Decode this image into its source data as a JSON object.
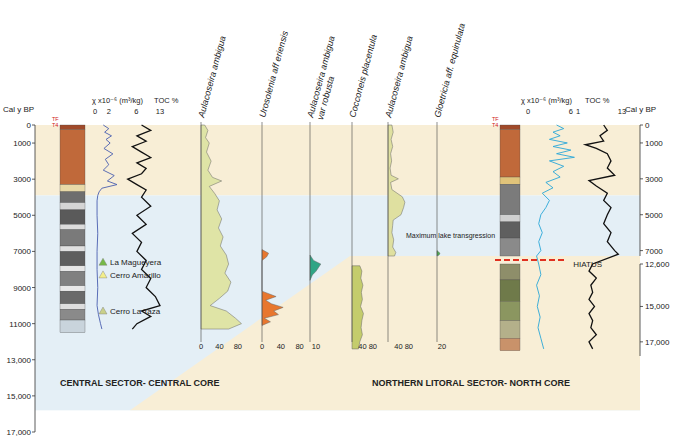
{
  "chart_data": {
    "type": "stratigraphic",
    "y_label": "Cal y BP",
    "ylim": [
      0,
      17000
    ],
    "yticks": [
      0,
      1000,
      3000,
      5000,
      7000,
      9000,
      11000,
      {
        "value": 13000,
        "label": "13,000"
      },
      {
        "value": 15000,
        "label": "15,000"
      },
      {
        "value": 17000,
        "label": "17,000"
      }
    ],
    "y2_label": "Cal y BP",
    "y2_segments": [
      {
        "ylim": [
          0,
          7300
        ],
        "yticks": [
          0,
          1000,
          3000,
          5000,
          7000
        ]
      },
      {
        "ylim": [
          12600,
          17800
        ],
        "yticks": [
          {
            "value": 12600,
            "label": "12,600"
          },
          {
            "value": 15000,
            "label": "15,000"
          },
          {
            "value": 17000,
            "label": "17,000"
          }
        ]
      }
    ],
    "hiatus": "HIATUS",
    "zones": [
      {
        "from": 0,
        "to": 3900,
        "color": "#f8eed6"
      },
      {
        "from": 3900,
        "to": 15800,
        "color": "#e4eff6"
      }
    ],
    "sectors": [
      {
        "core": "central",
        "label": "CENTRAL SECTOR- CENTRAL CORE"
      },
      {
        "core": "north",
        "label": "NORTHERN LITORAL SECTOR- NORTH CORE"
      }
    ],
    "tephra": [
      {
        "name": "La Magueyera",
        "age": 7600,
        "color": "#76b947"
      },
      {
        "name": "Cerro Amarillo",
        "age": 8300,
        "color": "#f3ee8a"
      },
      {
        "name": "Cerro La Taza",
        "age": 10300,
        "color": "#c9d08a"
      }
    ],
    "annotations": [
      {
        "core": "north",
        "age": 6300,
        "text": "Maximum lake transgression"
      }
    ],
    "panels": [
      {
        "core": "central",
        "type": "lithology",
        "top_labels": [
          "TF",
          "T4"
        ],
        "units": [
          {
            "top": 0,
            "bottom": 250,
            "color": "#a04a2a"
          },
          {
            "top": 250,
            "bottom": 3300,
            "color": "#c0693a"
          },
          {
            "top": 3300,
            "bottom": 3700,
            "color": "#e8d9a8"
          },
          {
            "top": 3700,
            "bottom": 4300,
            "color": "#6e6e6e"
          },
          {
            "top": 4300,
            "bottom": 4700,
            "color": "#d5d5d5"
          },
          {
            "top": 4700,
            "bottom": 5500,
            "color": "#5a5a5a"
          },
          {
            "top": 5500,
            "bottom": 5800,
            "color": "#dcdcdc"
          },
          {
            "top": 5800,
            "bottom": 6700,
            "color": "#7a7a7a"
          },
          {
            "top": 6700,
            "bottom": 7000,
            "color": "#e0e0e0"
          },
          {
            "top": 7000,
            "bottom": 7800,
            "color": "#5e5e5e"
          },
          {
            "top": 7800,
            "bottom": 8100,
            "color": "#e6e6e6"
          },
          {
            "top": 8100,
            "bottom": 8900,
            "color": "#808080"
          },
          {
            "top": 8900,
            "bottom": 9200,
            "color": "#e8e8e8"
          },
          {
            "top": 9200,
            "bottom": 9900,
            "color": "#6a6a6a"
          },
          {
            "top": 9900,
            "bottom": 10200,
            "color": "#dedede"
          },
          {
            "top": 10200,
            "bottom": 10800,
            "color": "#8a8a8a"
          },
          {
            "top": 10800,
            "bottom": 11500,
            "color": "#c9d4dc"
          }
        ]
      },
      {
        "core": "central",
        "type": "line",
        "label": "χ x10⁻⁶ (m³/kg)",
        "color": "#4a5fb0",
        "xlim": [
          0,
          8
        ],
        "xticks": [
          0,
          2,
          6
        ],
        "y": [
          0,
          200,
          400,
          600,
          800,
          1000,
          1300,
          1600,
          1900,
          2200,
          2500,
          2800,
          3100,
          3300,
          3500,
          3700,
          3900,
          4200,
          5000,
          6000,
          7000,
          8000,
          9000,
          10000,
          10500,
          11000,
          11300
        ],
        "values": [
          1.2,
          2.0,
          1.4,
          2.4,
          1.6,
          2.2,
          1.3,
          2.6,
          1.5,
          2.0,
          1.2,
          2.8,
          1.8,
          3.2,
          1.0,
          0.6,
          0.4,
          0.3,
          0.3,
          0.4,
          0.3,
          0.3,
          0.4,
          0.3,
          0.5,
          0.8,
          1.0
        ]
      },
      {
        "core": "central",
        "type": "line",
        "label": "TOC %",
        "color": "#111111",
        "xlim": [
          0,
          13
        ],
        "xticks": [
          13
        ],
        "y": [
          0,
          300,
          600,
          900,
          1200,
          1500,
          1800,
          2100,
          2400,
          2700,
          3000,
          3300,
          3600,
          4000,
          4500,
          5000,
          5500,
          6000,
          6500,
          7000,
          7500,
          8000,
          8500,
          9000,
          9500,
          10000,
          10300,
          10600,
          11000,
          11300
        ],
        "values": [
          9,
          11,
          8,
          10,
          7,
          9,
          11,
          8,
          10,
          9,
          6,
          8,
          10,
          9,
          11,
          8,
          10,
          7,
          9,
          8,
          10,
          9,
          11,
          10,
          12,
          13,
          9,
          11,
          8,
          7
        ]
      },
      {
        "core": "central",
        "type": "area",
        "title": "Aulacoseira ambigua",
        "color": "#dfe4a6",
        "xlim": [
          0,
          100
        ],
        "xticks": [
          0,
          40,
          80
        ],
        "y": [
          0,
          300,
          700,
          1000,
          1500,
          2000,
          2500,
          2900,
          3100,
          3400,
          3800,
          4200,
          4700,
          5200,
          5700,
          6200,
          6700,
          7200,
          7700,
          8200,
          8700,
          9200,
          9600,
          10000,
          10300,
          10700,
          11000,
          11300
        ],
        "values": [
          8,
          15,
          10,
          18,
          12,
          22,
          15,
          25,
          45,
          18,
          30,
          40,
          35,
          45,
          38,
          48,
          42,
          55,
          60,
          52,
          65,
          58,
          40,
          20,
          55,
          75,
          88,
          60
        ]
      },
      {
        "core": "central",
        "type": "area",
        "title": "Urosolenia aff eriensis",
        "color": "#e8772e",
        "xlim": [
          0,
          100
        ],
        "xticks": [
          0,
          40,
          80
        ],
        "y": [
          6900,
          7100,
          7300,
          7500,
          9200,
          9500,
          9700,
          9900,
          10100,
          10300,
          10500,
          10700,
          10900,
          11100
        ],
        "values": [
          0,
          14,
          10,
          0,
          0,
          30,
          8,
          20,
          45,
          25,
          35,
          5,
          18,
          0
        ]
      },
      {
        "core": "central",
        "type": "area",
        "title": [
          "Aulacoseira ambigua",
          "var robusta"
        ],
        "color": "#2fa585",
        "xlim": [
          0,
          20
        ],
        "xticks": [
          10
        ],
        "y": [
          7200,
          7500,
          7700,
          7900,
          8100,
          8300,
          8600
        ],
        "values": [
          0,
          6,
          18,
          14,
          10,
          4,
          0
        ]
      },
      {
        "core": "north",
        "type": "area",
        "title": "Cocconeis placentula",
        "color": "#c4cc6c",
        "xlim": [
          0,
          100
        ],
        "xticks": [
          40,
          80
        ],
        "y": [
          12700,
          13000,
          13400,
          13800,
          14200,
          14600,
          15000,
          15400,
          15800,
          16200,
          16600,
          17000,
          17400
        ],
        "values": [
          30,
          38,
          34,
          42,
          36,
          40,
          33,
          44,
          38,
          35,
          40,
          30,
          25
        ]
      },
      {
        "core": "north",
        "type": "area",
        "title": "Aulacoseira ambigua",
        "color": "#dfe0a0",
        "xlim": [
          0,
          100
        ],
        "xticks": [
          40,
          80
        ],
        "y": [
          0,
          400,
          800,
          1200,
          1600,
          2000,
          2400,
          2800,
          3000,
          3200,
          3600,
          4000,
          4300,
          4600,
          5000,
          5300,
          5600,
          6000,
          6400,
          6800,
          7100,
          7300
        ],
        "values": [
          15,
          20,
          12,
          18,
          10,
          14,
          8,
          12,
          40,
          10,
          15,
          55,
          65,
          60,
          50,
          20,
          18,
          15,
          22,
          18,
          30,
          25
        ]
      },
      {
        "core": "north",
        "type": "area",
        "title": "Gloetricia aff. equinulata",
        "color": "#4caf50",
        "xlim": [
          0,
          40
        ],
        "xticks": [
          20
        ],
        "y": [
          7000,
          7150,
          7250,
          7300
        ],
        "values": [
          0,
          12,
          8,
          0
        ]
      },
      {
        "core": "north",
        "type": "lithology",
        "top_labels": [
          "TF",
          "T4"
        ],
        "units": [
          {
            "top": 0,
            "bottom": 250,
            "color": "#a04a2a"
          },
          {
            "top": 250,
            "bottom": 2900,
            "color": "#c0693a"
          },
          {
            "top": 2900,
            "bottom": 3300,
            "color": "#e0c37a"
          },
          {
            "top": 3300,
            "bottom": 5000,
            "color": "#7b7b7b"
          },
          {
            "top": 5000,
            "bottom": 5400,
            "color": "#d0d0d0"
          },
          {
            "top": 5400,
            "bottom": 6300,
            "color": "#5f5f5f"
          },
          {
            "top": 6300,
            "bottom": 7300,
            "color": "#8a8a8a"
          },
          {
            "top": 12600,
            "bottom": 13500,
            "color": "#8e8e6a"
          },
          {
            "top": 13500,
            "bottom": 14700,
            "color": "#6f7a4a"
          },
          {
            "top": 14700,
            "bottom": 15800,
            "color": "#8b9660"
          },
          {
            "top": 15800,
            "bottom": 16800,
            "color": "#b4b08a"
          },
          {
            "top": 16800,
            "bottom": 17500,
            "color": "#c9926a"
          }
        ]
      },
      {
        "core": "north",
        "type": "line",
        "label": "χ x10⁻⁶ (m³/kg)",
        "color": "#2aa7d8",
        "xlim": [
          0,
          7
        ],
        "xticks": [
          0,
          6
        ],
        "y": [
          0,
          200,
          400,
          600,
          800,
          1000,
          1200,
          1400,
          1600,
          1800,
          2000,
          2300,
          2600,
          2900,
          3200,
          3500,
          3800,
          4200,
          4600,
          5000,
          5500,
          6000,
          6500,
          7000,
          7300,
          12600,
          13200,
          13800,
          14400,
          15000,
          15600,
          16200,
          16800,
          17400
        ],
        "values": [
          4,
          5,
          3.5,
          4.5,
          3,
          5.5,
          3.5,
          6,
          4,
          6.5,
          3,
          5,
          3.5,
          4.5,
          2.5,
          3.5,
          2,
          3,
          2.5,
          1.8,
          1.5,
          2,
          1.5,
          1.8,
          1.2,
          1.5,
          1.8,
          1.2,
          1.6,
          1.3,
          1.7,
          1.4,
          1.8,
          2.2
        ]
      },
      {
        "core": "north",
        "type": "line",
        "label": "TOC %",
        "color": "#111111",
        "xlim": [
          1,
          13
        ],
        "xticks": [
          1,
          13
        ],
        "y": [
          0,
          300,
          600,
          900,
          1100,
          1300,
          1600,
          2000,
          2400,
          2800,
          3100,
          3400,
          3800,
          4200,
          4600,
          5000,
          5500,
          6000,
          6500,
          7000,
          7200,
          12600,
          13000,
          13400,
          13800,
          14200,
          14600,
          15000,
          15400,
          15800,
          16200,
          16600,
          17000,
          17400
        ],
        "values": [
          8,
          9,
          7,
          8,
          3,
          6,
          9,
          10,
          9,
          11,
          4,
          6,
          9,
          8,
          10,
          9,
          8,
          10,
          9,
          11,
          12,
          5,
          4,
          6,
          4.5,
          5,
          4,
          5.5,
          4,
          5,
          4.5,
          6,
          4,
          5
        ]
      }
    ]
  }
}
